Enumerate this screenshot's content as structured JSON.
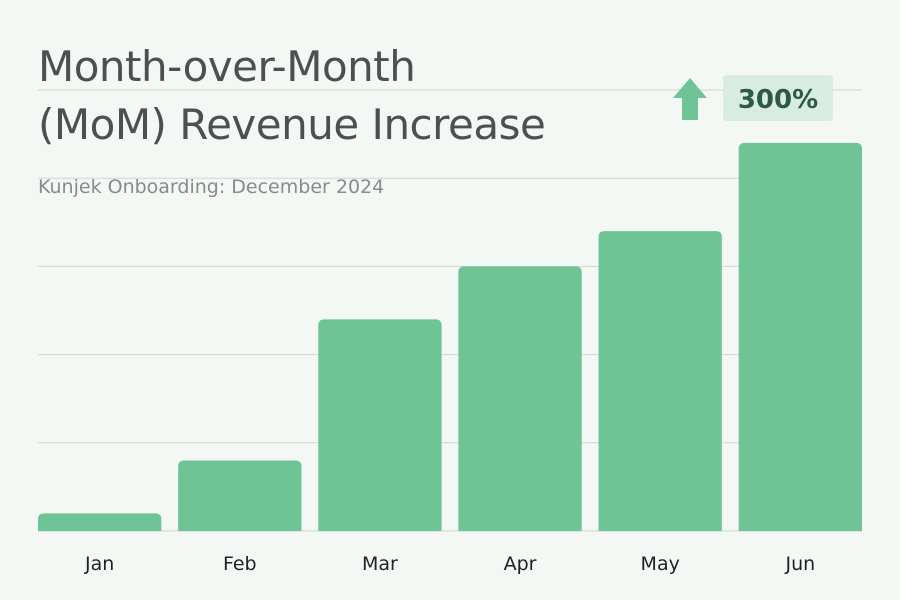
{
  "colors": {
    "bar": "#6fc495",
    "arrow": "#6fc495",
    "grid": "#cfd8d2",
    "badge_bg": "#d9ece1",
    "badge_text": "#2c5a44"
  },
  "chart_data": {
    "type": "bar",
    "title_lines": [
      "Month-over-Month",
      "(MoM) Revenue Increase"
    ],
    "subtitle": "Kunjek Onboarding: December 2024",
    "categories": [
      "Jan",
      "Feb",
      "Mar",
      "Apr",
      "May",
      "Jun"
    ],
    "values": [
      0.4,
      1.6,
      4.8,
      6.0,
      6.8,
      8.8
    ],
    "ylim": [
      0,
      10
    ],
    "yticks": [
      0,
      2,
      4,
      6,
      8,
      10
    ],
    "grid": true,
    "annotation": {
      "icon": "arrow-up-icon",
      "text": "300%"
    }
  }
}
